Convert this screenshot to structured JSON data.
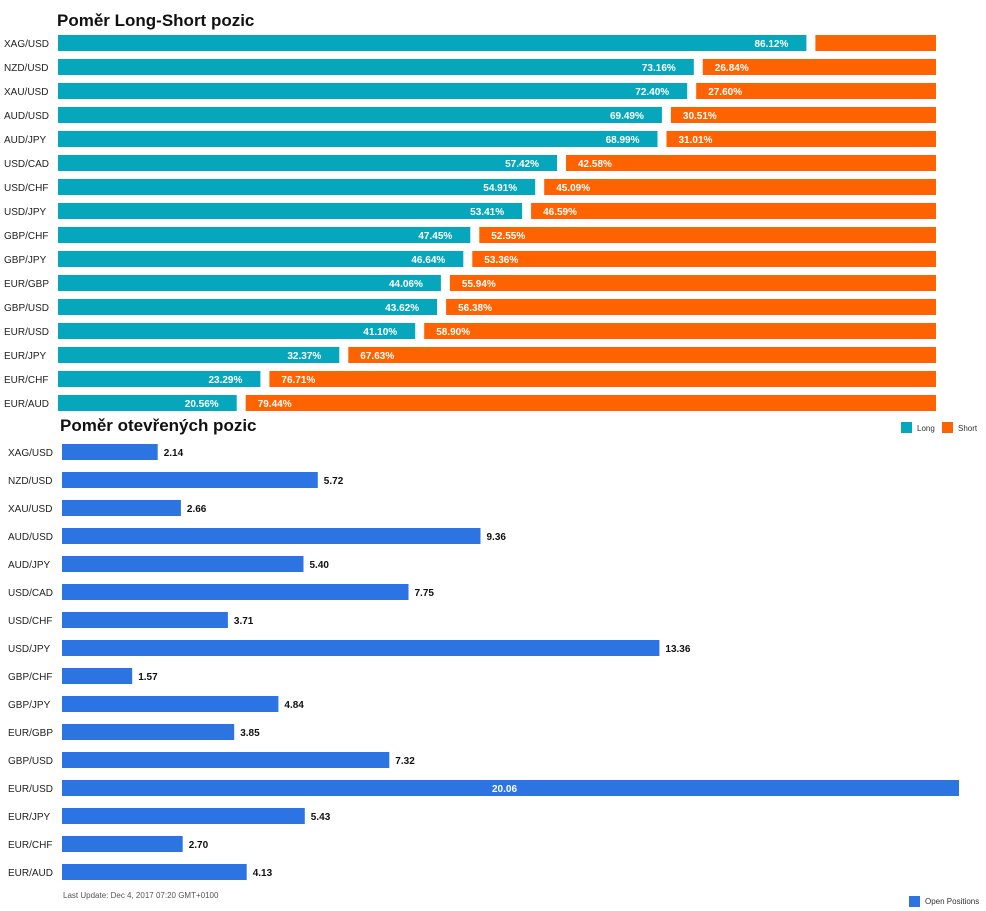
{
  "colors": {
    "long": "#06a6bd",
    "short": "#ff6200",
    "open": "#2d74e3"
  },
  "chart_data": [
    {
      "type": "bar",
      "orientation": "horizontal",
      "stacked": true,
      "title": "Poměr Long-Short pozic",
      "categories": [
        "XAG/USD",
        "NZD/USD",
        "XAU/USD",
        "AUD/USD",
        "AUD/JPY",
        "USD/CAD",
        "USD/CHF",
        "USD/JPY",
        "GBP/CHF",
        "GBP/JPY",
        "EUR/GBP",
        "GBP/USD",
        "EUR/USD",
        "EUR/JPY",
        "EUR/CHF",
        "EUR/AUD"
      ],
      "series": [
        {
          "name": "Long",
          "values": [
            86.12,
            73.16,
            72.4,
            69.49,
            68.99,
            57.42,
            54.91,
            53.41,
            47.45,
            46.64,
            44.06,
            43.62,
            41.1,
            32.37,
            23.29,
            20.56
          ],
          "labels": [
            "86.12%",
            "73.16%",
            "72.40%",
            "69.49%",
            "68.99%",
            "57.42%",
            "54.91%",
            "53.41%",
            "47.45%",
            "46.64%",
            "44.06%",
            "43.62%",
            "41.10%",
            "32.37%",
            "23.29%",
            "20.56%"
          ]
        },
        {
          "name": "Short",
          "values": [
            13.88,
            26.84,
            27.6,
            30.51,
            31.01,
            42.58,
            45.09,
            46.59,
            52.55,
            53.36,
            55.94,
            56.38,
            58.9,
            67.63,
            76.71,
            79.44
          ],
          "labels": [
            "",
            "26.84%",
            "27.60%",
            "30.51%",
            "31.01%",
            "42.58%",
            "45.09%",
            "46.59%",
            "52.55%",
            "53.36%",
            "55.94%",
            "56.38%",
            "58.90%",
            "67.63%",
            "76.71%",
            "79.44%"
          ]
        }
      ],
      "xlim": [
        0,
        100
      ],
      "legend": "right, below chart",
      "grid": false
    },
    {
      "type": "bar",
      "orientation": "horizontal",
      "title": "Poměr otevřených pozic",
      "categories": [
        "XAG/USD",
        "NZD/USD",
        "XAU/USD",
        "AUD/USD",
        "AUD/JPY",
        "USD/CAD",
        "USD/CHF",
        "USD/JPY",
        "GBP/CHF",
        "GBP/JPY",
        "EUR/GBP",
        "GBP/USD",
        "EUR/USD",
        "EUR/JPY",
        "EUR/CHF",
        "EUR/AUD"
      ],
      "series": [
        {
          "name": "Open Positions",
          "values": [
            2.14,
            5.72,
            2.66,
            9.36,
            5.4,
            7.75,
            3.71,
            13.36,
            1.57,
            4.84,
            3.85,
            7.32,
            20.06,
            5.43,
            2.7,
            4.13
          ],
          "labels": [
            "2.14",
            "5.72",
            "2.66",
            "9.36",
            "5.40",
            "7.75",
            "3.71",
            "13.36",
            "1.57",
            "4.84",
            "3.85",
            "7.32",
            "20.06",
            "5.43",
            "2.70",
            "4.13"
          ]
        }
      ],
      "xlim": [
        0,
        20.06
      ],
      "legend": "bottom-right",
      "grid": false
    }
  ],
  "footer": {
    "last_update": "Last Update: Dec 4, 2017 07:20 GMT+0100"
  }
}
